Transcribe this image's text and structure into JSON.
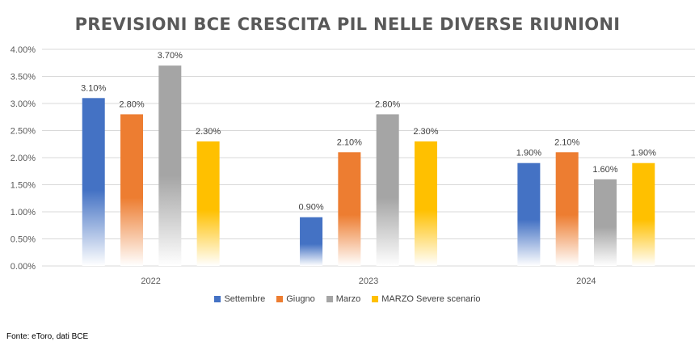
{
  "chart_data": {
    "type": "bar",
    "title": "PREVISIONI BCE CRESCITA PIL NELLE DIVERSE RIUNIONI",
    "categories": [
      "2022",
      "2023",
      "2024"
    ],
    "series": [
      {
        "name": "Settembre",
        "values": [
          3.1,
          0.9,
          1.9
        ],
        "color": "#4472C4"
      },
      {
        "name": "Giugno",
        "values": [
          2.8,
          2.1,
          2.1
        ],
        "color": "#ED7D31"
      },
      {
        "name": "Marzo",
        "values": [
          3.7,
          2.8,
          1.6
        ],
        "color": "#A5A5A5"
      },
      {
        "name": "MARZO Severe scenario",
        "values": [
          2.3,
          2.3,
          1.9
        ],
        "color": "#FFC000"
      }
    ],
    "data_labels": [
      [
        "3.10%",
        "0.90%",
        "1.90%"
      ],
      [
        "2.80%",
        "2.10%",
        "2.10%"
      ],
      [
        "3.70%",
        "2.80%",
        "1.60%"
      ],
      [
        "2.30%",
        "2.30%",
        "1.90%"
      ]
    ],
    "y_ticks": [
      "0.00%",
      "0.50%",
      "1.00%",
      "1.50%",
      "2.00%",
      "2.50%",
      "3.00%",
      "3.50%",
      "4.00%"
    ],
    "ylim": [
      0,
      4
    ],
    "grid": true,
    "legend_position": "bottom"
  },
  "source_note": "Fonte: eToro, dati BCE"
}
